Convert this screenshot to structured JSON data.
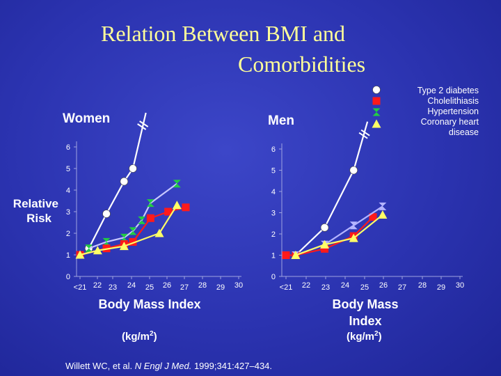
{
  "title": {
    "line1": "Relation Between BMI and",
    "line2": "Comorbidities"
  },
  "yaxis_label": {
    "line1": "Relative",
    "line2": "Risk"
  },
  "legend": [
    {
      "name": "Type 2 diabetes",
      "marker": "circle",
      "color": "#ffffff"
    },
    {
      "name": "Cholelithiasis",
      "marker": "square",
      "color": "#ff1a1a"
    },
    {
      "name": "Hypertension",
      "marker": "bowtie",
      "color": "#22cc44"
    },
    {
      "name": "Coronary heart disease",
      "marker": "triangle",
      "color": "#ffff66"
    }
  ],
  "xlabel": {
    "line1": "Body Mass Index",
    "units": "(kg/m",
    "units_sup": "2",
    "units_close": ")"
  },
  "xlabel_men": {
    "line1": "Body Mass",
    "line2": "Index"
  },
  "citation": {
    "prefix": "Willett WC, et al. ",
    "journal": "N Engl J Med.",
    "suffix": " 1999;341:427–434."
  },
  "chart_data": [
    {
      "type": "line",
      "panel_title": "Women",
      "x": [
        "<21",
        "22",
        "23",
        "24",
        "25",
        "26",
        "27",
        "28",
        "29",
        "30"
      ],
      "yticks": [
        "0",
        "1",
        "2",
        "3",
        "4",
        "5",
        "6"
      ],
      "ylim": [
        0,
        6
      ],
      "series": [
        {
          "name": "Type 2 diabetes",
          "color": "#ffffff",
          "points": [
            [
              1,
              1.3
            ],
            [
              3,
              2.9
            ],
            [
              5,
              4.4
            ],
            [
              6,
              5.0
            ]
          ],
          "break": [
            7,
            7
          ]
        },
        {
          "name": "Hypertension",
          "color": "#22cc44",
          "colorAlt": "#c8c8ff",
          "points": [
            [
              1,
              1.3
            ],
            [
              3,
              1.6
            ],
            [
              5,
              1.8
            ],
            [
              6,
              2.1
            ],
            [
              7,
              2.6
            ],
            [
              8,
              3.4
            ],
            [
              11,
              4.3
            ]
          ]
        },
        {
          "name": "Cholelithiasis",
          "color": "#ff1a1a",
          "points": [
            [
              0,
              1.0
            ],
            [
              3,
              1.3
            ],
            [
              5,
              1.5
            ],
            [
              6,
              1.6
            ],
            [
              8,
              2.7
            ],
            [
              10,
              3.0
            ],
            [
              12,
              3.2
            ]
          ]
        },
        {
          "name": "Coronary heart disease",
          "color": "#ffff66",
          "points": [
            [
              0,
              1.0
            ],
            [
              2,
              1.2
            ],
            [
              5,
              1.4
            ],
            [
              9,
              2.0
            ],
            [
              11,
              3.3
            ]
          ]
        }
      ]
    },
    {
      "type": "line",
      "panel_title": "Men",
      "x": [
        "<21",
        "22",
        "23",
        "24",
        "25",
        "26",
        "27",
        "28",
        "29",
        "30"
      ],
      "yticks": [
        "0",
        "1",
        "2",
        "3",
        "4",
        "5",
        "6"
      ],
      "ylim": [
        0,
        6
      ],
      "series": [
        {
          "name": "Type 2 diabetes",
          "color": "#ffffff",
          "points": [
            [
              1,
              1.0
            ],
            [
              4,
              2.3
            ],
            [
              7,
              5.0
            ]
          ],
          "break": [
            8,
            6.7
          ]
        },
        {
          "name": "Cholelithiasis",
          "color": "#ff1a1a",
          "points": [
            [
              0,
              1.0
            ],
            [
              1,
              1.0
            ],
            [
              4,
              1.3
            ],
            [
              7,
              1.9
            ],
            [
              9,
              2.8
            ]
          ]
        },
        {
          "name": "Hypertension",
          "color": "#b4b4ff",
          "points": [
            [
              1,
              1.0
            ],
            [
              4,
              1.5
            ],
            [
              7,
              2.4
            ],
            [
              10,
              3.3
            ]
          ]
        },
        {
          "name": "Coronary heart disease",
          "color": "#ffff66",
          "points": [
            [
              1,
              1.0
            ],
            [
              4,
              1.5
            ],
            [
              7,
              1.8
            ],
            [
              10,
              2.9
            ]
          ]
        }
      ]
    }
  ]
}
